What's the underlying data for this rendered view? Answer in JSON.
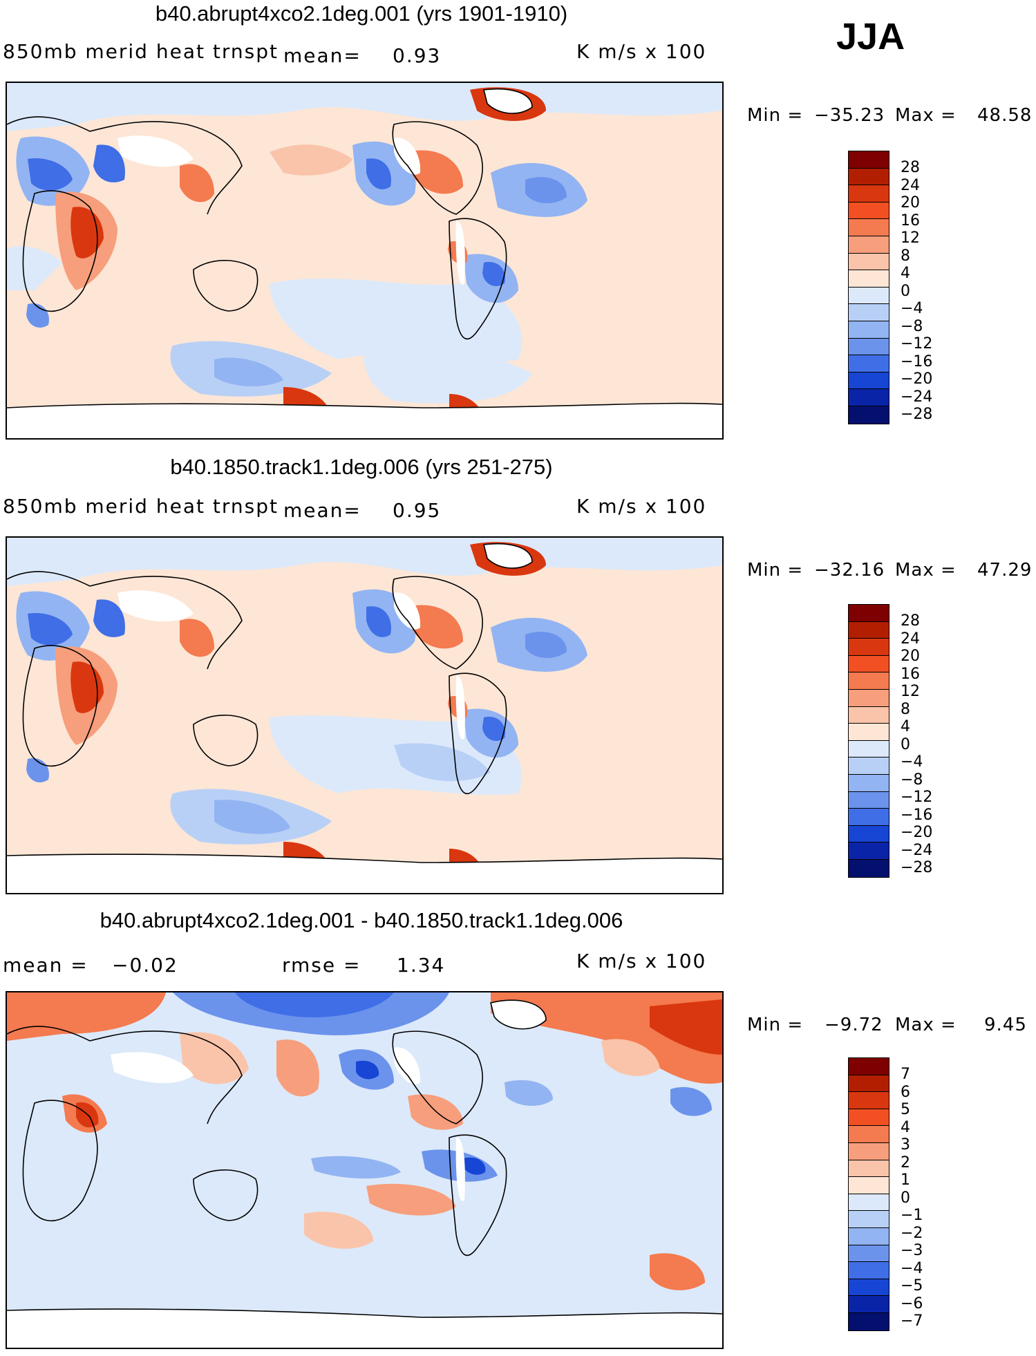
{
  "season": "JJA",
  "units": "K m/s x 100",
  "panels": [
    {
      "title": "b40.abrupt4xco2.1deg.001 (yrs 1901-1910)",
      "variable": "850mb merid heat trnspt",
      "mean_label": "mean=",
      "mean_value": "0.93",
      "min_label": "Min =",
      "min_value": "−35.23",
      "max_label": "Max =",
      "max_value": "48.58",
      "colorbar": {
        "levels": [
          "28",
          "24",
          "20",
          "16",
          "12",
          "8",
          "4",
          "0",
          "−4",
          "−8",
          "−12",
          "−16",
          "−20",
          "−24",
          "−28"
        ],
        "colors": [
          "#7f0000",
          "#b21f00",
          "#d9370f",
          "#f25022",
          "#f47a4f",
          "#f79e7c",
          "#fac4aa",
          "#fde6d6",
          "#dce9fa",
          "#b9d0f6",
          "#93b4f2",
          "#6b93ec",
          "#3f6ee6",
          "#1745d4",
          "#0a24a8",
          "#04106e"
        ]
      }
    },
    {
      "title": "b40.1850.track1.1deg.006 (yrs 251-275)",
      "variable": "850mb merid heat trnspt",
      "mean_label": "mean=",
      "mean_value": "0.95",
      "min_label": "Min =",
      "min_value": "−32.16",
      "max_label": "Max =",
      "max_value": "47.29",
      "colorbar": {
        "levels": [
          "28",
          "24",
          "20",
          "16",
          "12",
          "8",
          "4",
          "0",
          "−4",
          "−8",
          "−12",
          "−16",
          "−20",
          "−24",
          "−28"
        ],
        "colors": [
          "#7f0000",
          "#b21f00",
          "#d9370f",
          "#f25022",
          "#f47a4f",
          "#f79e7c",
          "#fac4aa",
          "#fde6d6",
          "#dce9fa",
          "#b9d0f6",
          "#93b4f2",
          "#6b93ec",
          "#3f6ee6",
          "#1745d4",
          "#0a24a8",
          "#04106e"
        ]
      }
    },
    {
      "title": "b40.abrupt4xco2.1deg.001 - b40.1850.track1.1deg.006",
      "mean_label": "mean =",
      "mean_value": "−0.02",
      "rmse_label": "rmse =",
      "rmse_value": "1.34",
      "min_label": "Min =",
      "min_value": "−9.72",
      "max_label": "Max =",
      "max_value": "9.45",
      "colorbar": {
        "levels": [
          "7",
          "6",
          "5",
          "4",
          "3",
          "2",
          "1",
          "0",
          "−1",
          "−2",
          "−3",
          "−4",
          "−5",
          "−6",
          "−7"
        ],
        "colors": [
          "#7f0000",
          "#b21f00",
          "#d9370f",
          "#f25022",
          "#f47a4f",
          "#f79e7c",
          "#fac4aa",
          "#fde6d6",
          "#dce9fa",
          "#b9d0f6",
          "#93b4f2",
          "#6b93ec",
          "#3f6ee6",
          "#1745d4",
          "#0a24a8",
          "#04106e"
        ]
      }
    }
  ]
}
